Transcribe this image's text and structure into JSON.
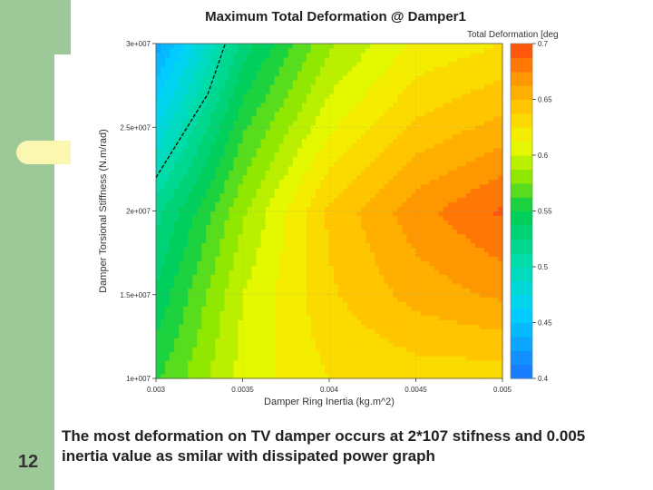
{
  "slide": {
    "number": "12",
    "caption": "The most deformation on TV damper occurs at 2*107 stifness and 0.005 inertia value as smilar with dissipated power graph"
  },
  "chart_data": {
    "type": "heatmap",
    "title": "Maximum Total Deformation @ Damper1",
    "xlabel": "Damper Ring Inertia (kg.m^2)",
    "ylabel": "Damper Torsional Stiffness (N.m/rad)",
    "xlim": [
      0.003,
      0.005
    ],
    "ylim": [
      10000000,
      30000000
    ],
    "x_ticks": [
      0.003,
      0.0035,
      0.004,
      0.0045,
      0.005
    ],
    "x_tick_labels": [
      "0.003",
      "0.0035",
      "0.004",
      "0.0045",
      "0.005"
    ],
    "y_ticks": [
      10000000,
      15000000,
      20000000,
      25000000,
      30000000
    ],
    "y_tick_labels": [
      "1e+007",
      "1.5e+007",
      "2e+007",
      "2.5e+007",
      "3e+007"
    ],
    "colorbar": {
      "label": "Total Deformation [deg",
      "range": [
        0.4,
        0.7
      ],
      "ticks": [
        0.4,
        0.45,
        0.5,
        0.55,
        0.6,
        0.65,
        0.7
      ],
      "tick_labels": [
        "0.4",
        "0.45",
        "0.5",
        "0.55",
        "0.6",
        "0.65",
        "0.7"
      ],
      "levels": 24
    },
    "grid": true,
    "x": [
      0.003,
      0.0035,
      0.004,
      0.0045,
      0.005
    ],
    "y": [
      10000000,
      15000000,
      20000000,
      25000000,
      30000000
    ],
    "z": [
      [
        0.56,
        0.605,
        0.625,
        0.63,
        0.63
      ],
      [
        0.54,
        0.6,
        0.635,
        0.655,
        0.665
      ],
      [
        0.52,
        0.585,
        0.64,
        0.67,
        0.69
      ],
      [
        0.475,
        0.56,
        0.61,
        0.64,
        0.655
      ],
      [
        0.43,
        0.53,
        0.585,
        0.615,
        0.625
      ]
    ],
    "dashed_contour": {
      "points": [
        [
          0.003,
          22000000
        ],
        [
          0.0033,
          27000000
        ],
        [
          0.0034,
          30000000
        ]
      ]
    },
    "colors": {
      "low": "#1874ff",
      "mid": "#00d060",
      "high": "#ff4e10"
    }
  }
}
